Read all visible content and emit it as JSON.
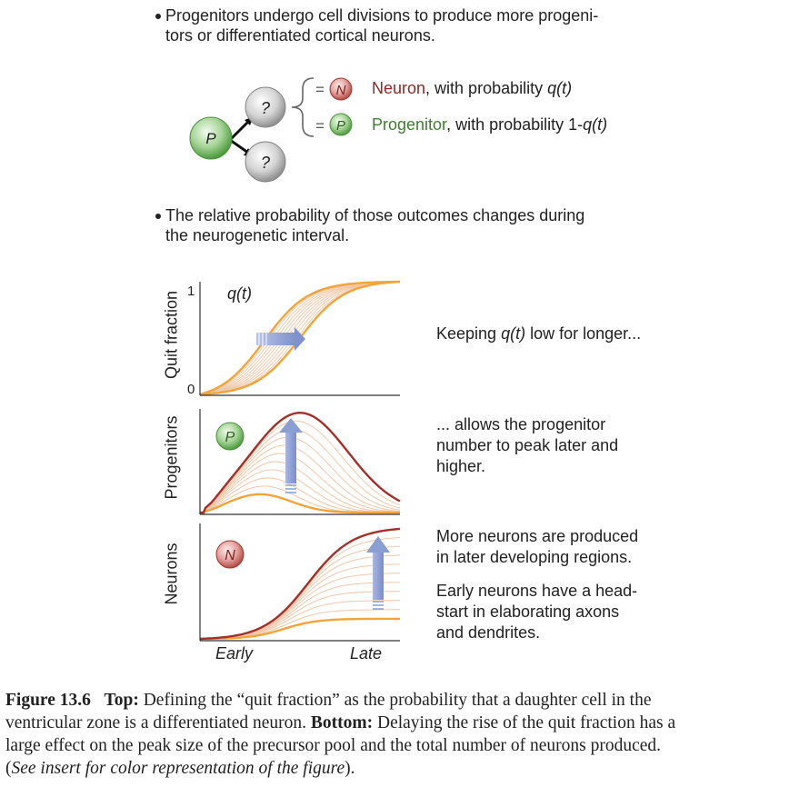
{
  "bullets": {
    "first_line1": "Progenitors undergo cell divisions to produce more progeni-",
    "first_line2": "tors or differentiated cortical neurons.",
    "second_line1": "The relative probability of those outcomes changes during",
    "second_line2": "the neurogenetic interval."
  },
  "schematic": {
    "progenitor_letter": "P",
    "unknown_mark": "?",
    "neuron_letter": "N",
    "equals": "=",
    "neuron_word": "Neuron",
    "neuron_rest_a": ", with probability ",
    "neuron_q": "q(t)",
    "progenitor_word": "Progenitor",
    "progenitor_rest_a": ", with probability 1-",
    "progenitor_q": "q(t)",
    "neuron_color": "#8b2a26",
    "progenitor_color": "#3f7d33"
  },
  "panels": {
    "quit_ylabel": "Quit fraction",
    "quit_tick_top": "1",
    "quit_tick_bottom": "0",
    "quit_curve_label": "q(t)",
    "progenitors_ylabel": "Progenitors",
    "progenitors_badge": "P",
    "neurons_ylabel": "Neurons",
    "neurons_badge": "N",
    "x_early": "Early",
    "x_late": "Late"
  },
  "notes": {
    "quit_pre": "Keeping ",
    "quit_q": "q(t)",
    "quit_post": " low for longer...",
    "prog_1": "... allows the progenitor",
    "prog_2": "number to peak later and",
    "prog_3": "higher.",
    "neur_1": "More neurons are produced",
    "neur_2": "in later developing regions.",
    "neur_3": "Early neurons have a head-",
    "neur_4": "start in elaborating axons",
    "neur_5": "and dendrites."
  },
  "caption": {
    "figure_label": "Figure 13.6",
    "top_label": "Top:",
    "top_text": " Defining the “quit fraction” as the probability that a daughter cell in the",
    "line2_a": "ventricular zone is a differentiated neuron. ",
    "bottom_label": "Bottom:",
    "line2_b": " Delaying the rise of the quit fraction has a",
    "line3": "large effect on the peak size of the precursor pool and the total number of neurons produced.",
    "line4_open": "(",
    "line4_italic": "See insert for color representation of the figure",
    "line4_close": ")."
  },
  "colors": {
    "dark_curve": "#a3302a",
    "orange_curve": "#f2a43a",
    "fan_line": "#f0c7a9",
    "arrow_blue": "#8b9ed3",
    "axis": "#333333"
  }
}
